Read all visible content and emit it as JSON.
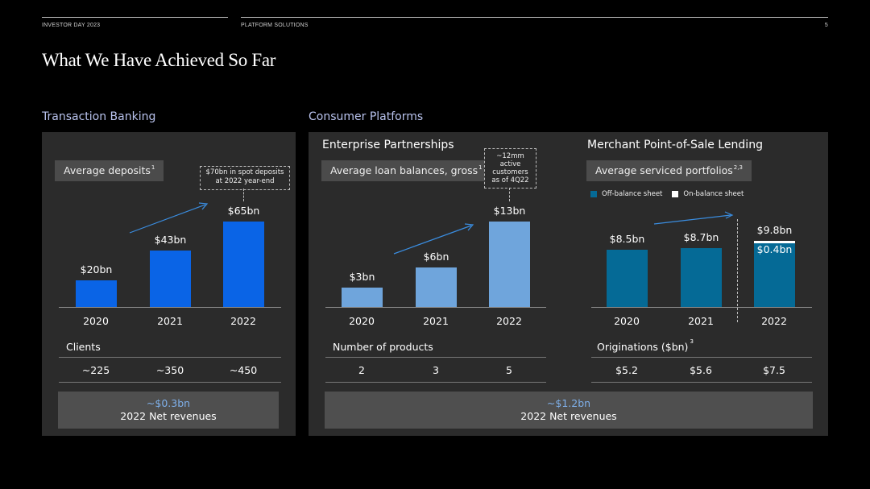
{
  "header": {
    "left_label": "INVESTOR DAY 2023",
    "mid_label": "PLATFORM SOLUTIONS",
    "page_number": "5"
  },
  "title": "What We Have Achieved So Far",
  "sections": {
    "transaction_banking": "Transaction Banking",
    "consumer_platforms": "Consumer Platforms"
  },
  "colors": {
    "tb_bar": "#0a64e6",
    "ep_bar": "#6fa5dc",
    "mp_bar": "#056a96",
    "mp_on_balance": "#ffffff",
    "arrow": "#3a8de0"
  },
  "chart_data": [
    {
      "type": "bar",
      "title": "Transaction Banking",
      "pill_label": "Average deposits",
      "pill_sup": "1",
      "callout": [
        "$70bn in spot deposits",
        "at 2022 year-end"
      ],
      "categories": [
        "2020",
        "2021",
        "2022"
      ],
      "values": [
        20,
        43,
        65
      ],
      "value_labels": [
        "$20bn",
        "$43bn",
        "$65bn"
      ],
      "ylim": [
        0,
        65
      ],
      "table": {
        "label": "Clients",
        "values": [
          "~225",
          "~350",
          "~450"
        ]
      },
      "revenue": {
        "amount": "~$0.3bn",
        "label": "2022 Net revenues"
      }
    },
    {
      "type": "bar",
      "title": "Enterprise Partnerships",
      "pill_label": "Average loan balances, gross",
      "pill_sup": "1",
      "callout": [
        "~12mm active",
        "customers",
        "as of 4Q22"
      ],
      "categories": [
        "2020",
        "2021",
        "2022"
      ],
      "values": [
        3,
        6,
        13
      ],
      "value_labels": [
        "$3bn",
        "$6bn",
        "$13bn"
      ],
      "ylim": [
        0,
        13
      ],
      "table": {
        "label": "Number of products",
        "values": [
          "2",
          "3",
          "5"
        ]
      }
    },
    {
      "type": "bar",
      "title": "Merchant Point-of-Sale Lending",
      "pill_label": "Average serviced portfolios",
      "pill_sup": "2,3",
      "legend": [
        "Off-balance sheet",
        "On-balance sheet"
      ],
      "categories": [
        "2020",
        "2021",
        "2022"
      ],
      "series": [
        {
          "name": "Off-balance sheet",
          "values": [
            8.5,
            8.7,
            9.4
          ]
        },
        {
          "name": "On-balance sheet",
          "values": [
            0,
            0,
            0.4
          ]
        }
      ],
      "value_labels": [
        "$8.5bn",
        "$8.7bn",
        "$9.8bn"
      ],
      "segment_label": "$0.4bn",
      "ylim": [
        0,
        9.8
      ],
      "table": {
        "label": "Originations ($bn)",
        "label_sup": "3",
        "values": [
          "$5.2",
          "$5.6",
          "$7.5"
        ]
      }
    }
  ],
  "consumer_revenue": {
    "amount": "~$1.2bn",
    "label": "2022 Net revenues"
  }
}
